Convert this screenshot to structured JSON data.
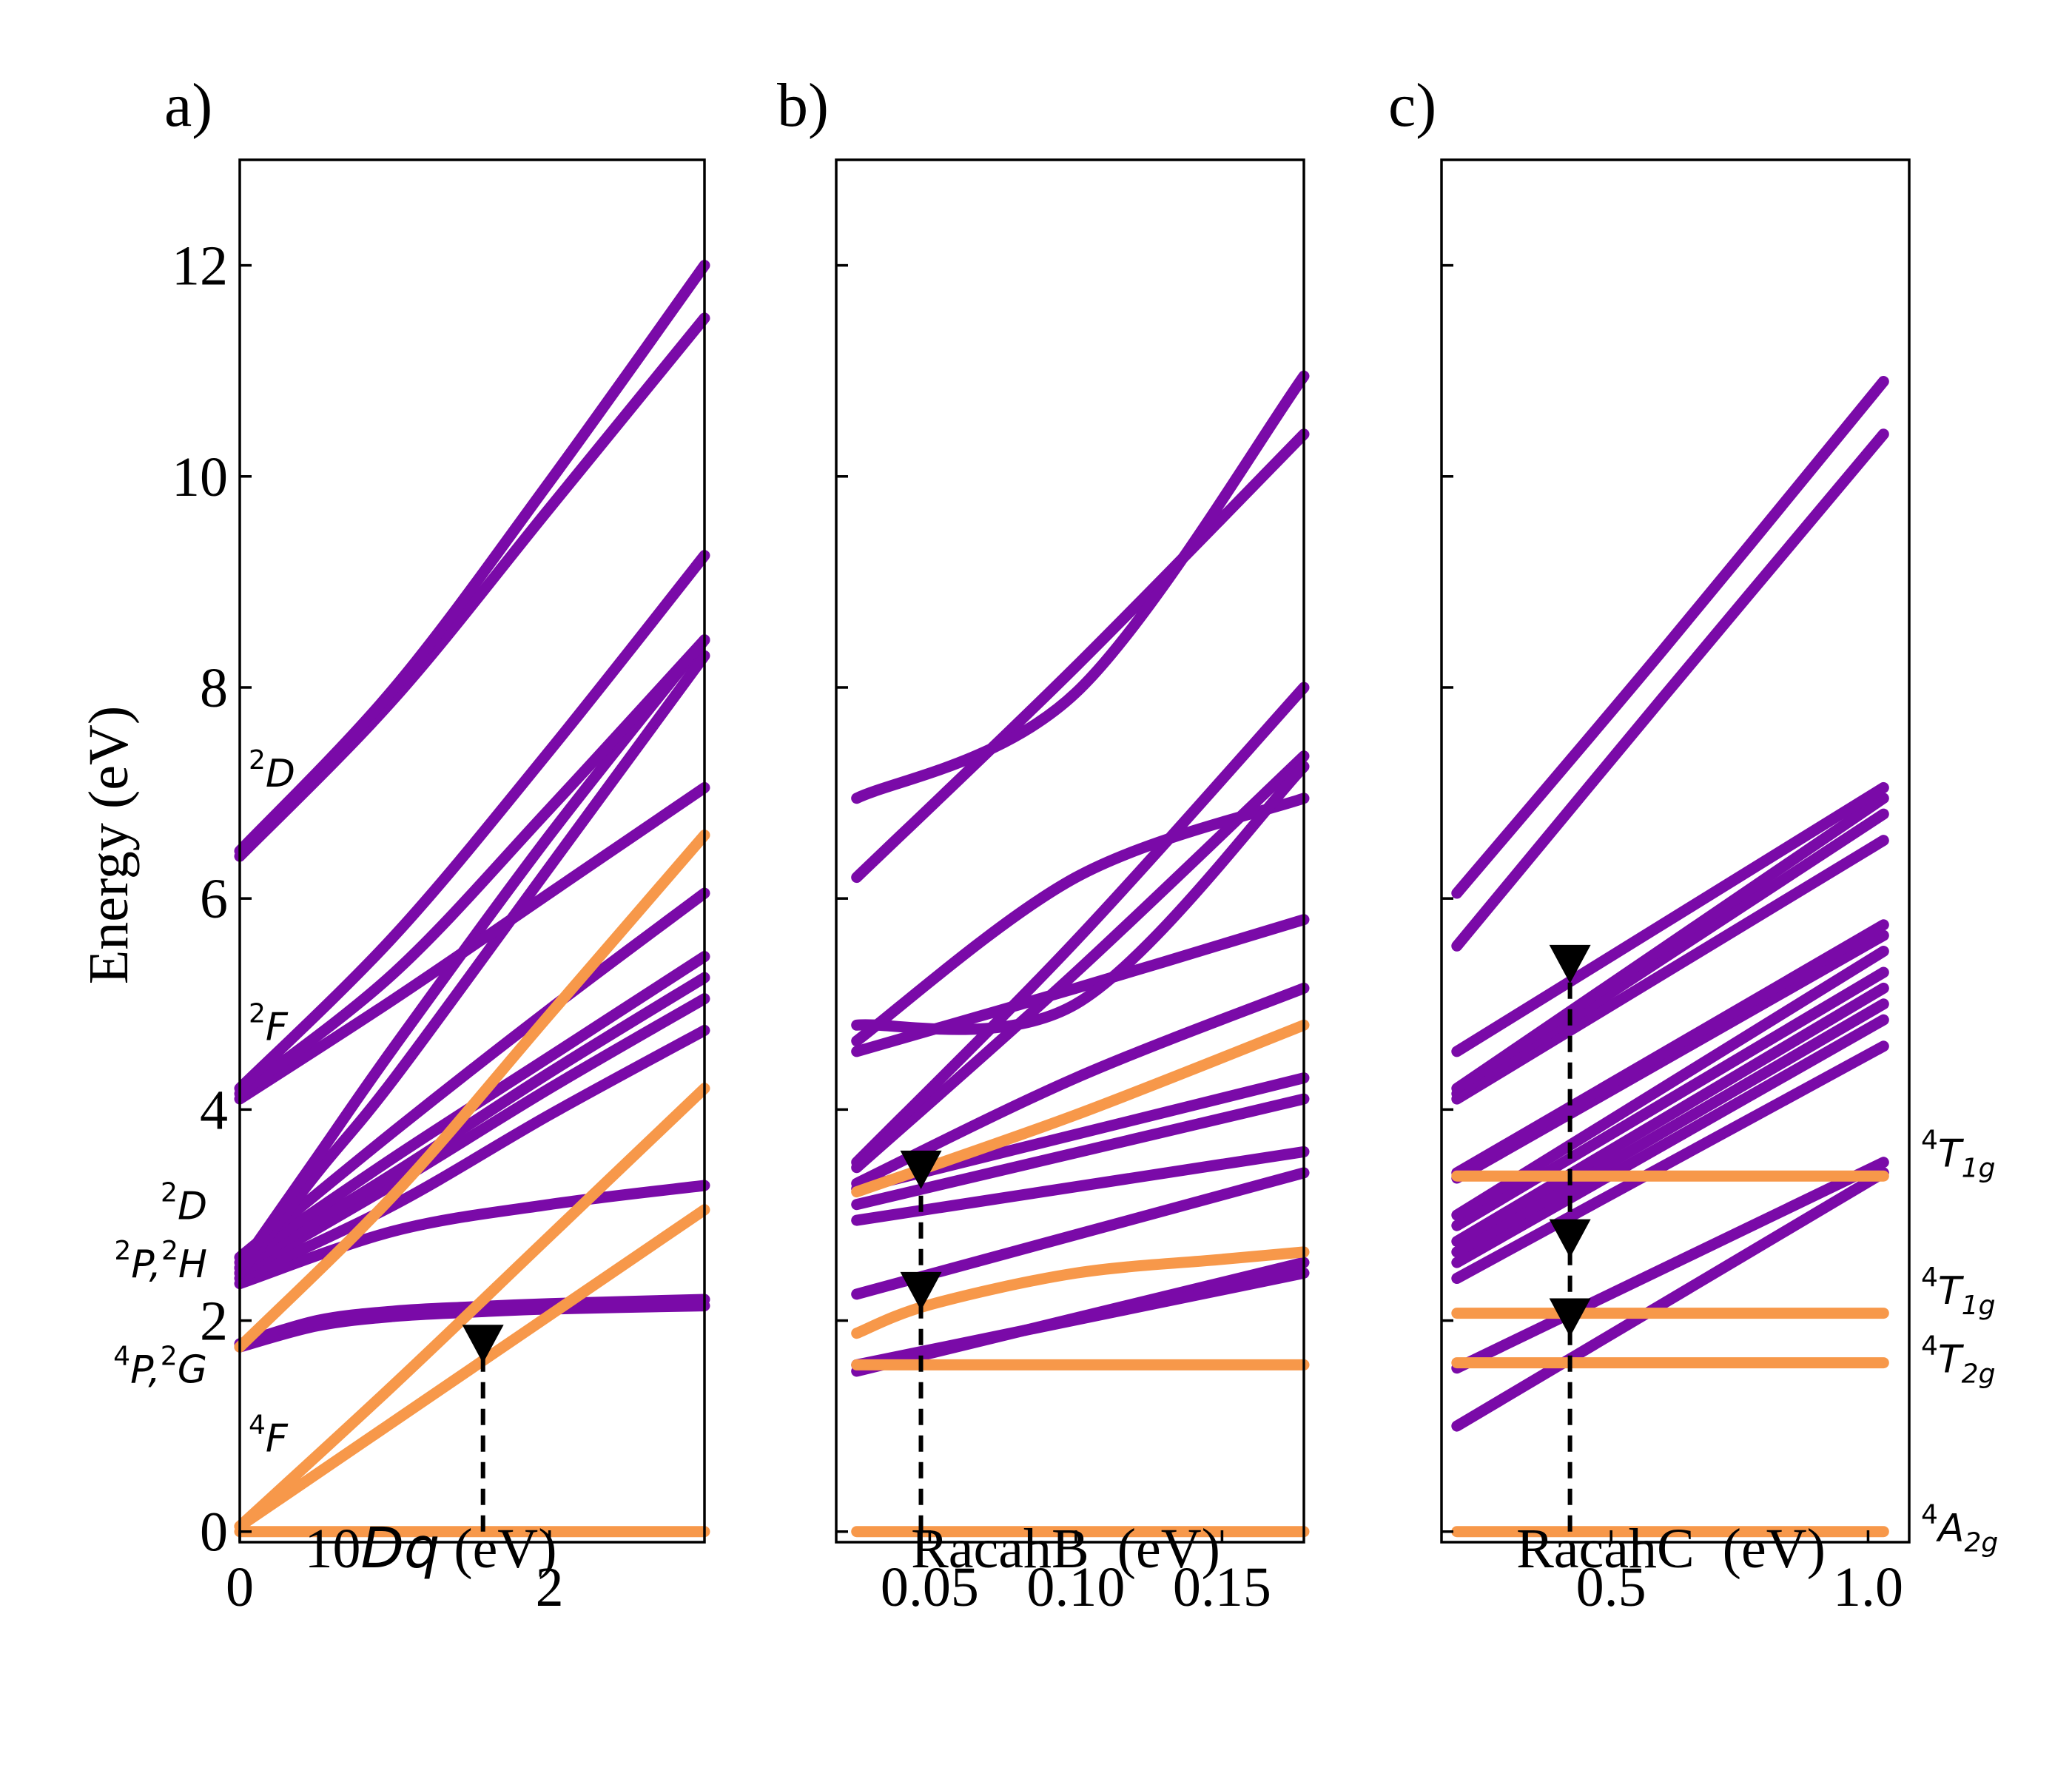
{
  "figure": {
    "ylabel": "Energy (eV)",
    "colors": {
      "quartet": "#F7984A",
      "doublet": "#7A0AA8",
      "marker": "#000000"
    }
  },
  "chart_data": [
    {
      "type": "line",
      "panel": "a)",
      "xlabel_prefix": "10",
      "xlabel_italic": "Dq",
      "xlabel_suffix": " (eV)",
      "xlim": [
        0,
        3
      ],
      "ylim": [
        -0.1,
        13
      ],
      "xticks": [
        0,
        2
      ],
      "xtick_labels": [
        "0",
        "2"
      ],
      "yticks": [
        0,
        2,
        4,
        6,
        8,
        10,
        12
      ],
      "ytick_labels": [
        "0",
        "2",
        "4",
        "6",
        "8",
        "10",
        "12"
      ],
      "left_labels": [
        {
          "sup": "2",
          "base": "D",
          "y": 7.2
        },
        {
          "sup": "2",
          "base": "F",
          "y": 4.8
        },
        {
          "sup": "2",
          "base": "D",
          "y": 3.1
        },
        {
          "sup": "2",
          "base": "P,",
          "sup2": "2",
          "base2": "H",
          "y": 2.55
        },
        {
          "sup": "4",
          "base": "P,",
          "sup2": "2",
          "base2": "G",
          "y": 1.55
        },
        {
          "sup": "4",
          "base": "F",
          "y": 0.9
        }
      ],
      "series": [
        {
          "name": "4A2g",
          "spin": "quartet",
          "x": [
            0,
            3
          ],
          "y": [
            0,
            0
          ]
        },
        {
          "name": "4T2g",
          "spin": "quartet",
          "x": [
            0,
            1.5,
            3
          ],
          "y": [
            0.05,
            1.55,
            3.05
          ]
        },
        {
          "name": "4T1g(F)",
          "spin": "quartet",
          "x": [
            0,
            1,
            2,
            3
          ],
          "y": [
            0.05,
            1.4,
            2.8,
            4.2
          ]
        },
        {
          "name": "4T1g(P)",
          "spin": "quartet",
          "x": [
            0,
            1,
            2,
            3
          ],
          "y": [
            1.75,
            3.2,
            4.9,
            6.6
          ]
        },
        {
          "name": "2E",
          "spin": "doublet",
          "x": [
            0,
            0.5,
            1,
            1.5,
            2,
            3
          ],
          "y": [
            1.75,
            1.95,
            2.04,
            2.08,
            2.11,
            2.14
          ]
        },
        {
          "name": "2T1",
          "spin": "doublet",
          "x": [
            0,
            0.5,
            1,
            1.5,
            2,
            3
          ],
          "y": [
            1.78,
            2.0,
            2.09,
            2.13,
            2.16,
            2.2
          ]
        },
        {
          "name": "d1",
          "spin": "doublet",
          "x": [
            0,
            1,
            2,
            3
          ],
          "y": [
            2.35,
            2.85,
            3.1,
            3.28
          ]
        },
        {
          "name": "d2",
          "spin": "doublet",
          "x": [
            0,
            1,
            2,
            3
          ],
          "y": [
            2.4,
            3.1,
            3.95,
            4.75
          ]
        },
        {
          "name": "d3",
          "spin": "doublet",
          "x": [
            0,
            1,
            2,
            3
          ],
          "y": [
            2.45,
            3.3,
            4.2,
            5.05
          ]
        },
        {
          "name": "d4",
          "spin": "doublet",
          "x": [
            0,
            1,
            2,
            3
          ],
          "y": [
            2.5,
            3.4,
            4.35,
            5.25
          ]
        },
        {
          "name": "d5",
          "spin": "doublet",
          "x": [
            0,
            1,
            2,
            3
          ],
          "y": [
            2.55,
            3.55,
            4.5,
            5.45
          ]
        },
        {
          "name": "d6",
          "spin": "doublet",
          "x": [
            0,
            1,
            2,
            3
          ],
          "y": [
            2.6,
            3.8,
            4.95,
            6.05
          ]
        },
        {
          "name": "d7",
          "spin": "doublet",
          "x": [
            0,
            0.5,
            1,
            2,
            3
          ],
          "y": [
            2.45,
            3.4,
            4.3,
            6.3,
            8.3
          ]
        },
        {
          "name": "d8",
          "spin": "doublet",
          "x": [
            0,
            0.5,
            1,
            2,
            3
          ],
          "y": [
            2.5,
            3.55,
            4.6,
            6.6,
            8.45
          ]
        },
        {
          "name": "d9",
          "spin": "doublet",
          "x": [
            0,
            1,
            2,
            3
          ],
          "y": [
            4.1,
            5.05,
            6.05,
            7.05
          ]
        },
        {
          "name": "d10",
          "spin": "doublet",
          "x": [
            0,
            1,
            2,
            3
          ],
          "y": [
            4.15,
            5.3,
            6.85,
            8.45
          ]
        },
        {
          "name": "d11",
          "spin": "doublet",
          "x": [
            0,
            1,
            2,
            3
          ],
          "y": [
            4.2,
            5.65,
            7.4,
            9.25
          ]
        },
        {
          "name": "d12",
          "spin": "doublet",
          "x": [
            0,
            1,
            2,
            3
          ],
          "y": [
            6.4,
            7.9,
            9.7,
            11.5
          ]
        },
        {
          "name": "d13",
          "spin": "doublet",
          "x": [
            0,
            1,
            2,
            3
          ],
          "y": [
            6.45,
            8.0,
            9.95,
            12.0
          ]
        },
        {
          "name": "transition",
          "spin": "marker",
          "x": [
            1.57,
            1.57
          ],
          "y": [
            0,
            1.75
          ]
        }
      ],
      "markers": [
        {
          "x": 1.57,
          "y": 1.75
        }
      ]
    },
    {
      "type": "line",
      "panel": "b)",
      "xlabel": "RacahB  (eV)",
      "xlim": [
        0.018,
        0.178
      ],
      "ylim": [
        -0.1,
        13
      ],
      "xticks": [
        0.05,
        0.1,
        0.15
      ],
      "xtick_labels": [
        "0.05",
        "0.10",
        "0.15"
      ],
      "yticks": [
        0,
        2,
        4,
        6,
        8,
        10,
        12
      ],
      "series": [
        {
          "name": "4A2g",
          "spin": "quartet",
          "x": [
            0.025,
            0.178
          ],
          "y": [
            0,
            0
          ]
        },
        {
          "name": "4T2g",
          "spin": "quartet",
          "x": [
            0.025,
            0.178
          ],
          "y": [
            1.58,
            1.58
          ]
        },
        {
          "name": "4T1g(F)",
          "spin": "quartet",
          "x": [
            0.025,
            0.05,
            0.1,
            0.15,
            0.178
          ],
          "y": [
            1.88,
            2.15,
            2.45,
            2.58,
            2.65
          ]
        },
        {
          "name": "4T1g(P)",
          "spin": "quartet",
          "x": [
            0.025,
            0.1,
            0.178
          ],
          "y": [
            3.22,
            3.95,
            4.8
          ]
        },
        {
          "name": "b1",
          "spin": "doublet",
          "x": [
            0.025,
            0.178
          ],
          "y": [
            1.52,
            2.55
          ]
        },
        {
          "name": "b2",
          "spin": "doublet",
          "x": [
            0.025,
            0.178
          ],
          "y": [
            1.58,
            2.45
          ]
        },
        {
          "name": "b3",
          "spin": "doublet",
          "x": [
            0.025,
            0.178
          ],
          "y": [
            2.25,
            3.4
          ]
        },
        {
          "name": "b4",
          "spin": "doublet",
          "x": [
            0.025,
            0.178
          ],
          "y": [
            2.95,
            3.6
          ]
        },
        {
          "name": "b5",
          "spin": "doublet",
          "x": [
            0.025,
            0.178
          ],
          "y": [
            3.1,
            4.1
          ]
        },
        {
          "name": "b6",
          "spin": "doublet",
          "x": [
            0.025,
            0.178
          ],
          "y": [
            3.25,
            4.3
          ]
        },
        {
          "name": "b7",
          "spin": "doublet",
          "x": [
            0.025,
            0.1,
            0.178
          ],
          "y": [
            3.3,
            4.3,
            5.15
          ]
        },
        {
          "name": "b8",
          "spin": "doublet",
          "x": [
            0.025,
            0.1,
            0.178
          ],
          "y": [
            3.45,
            5.3,
            7.35
          ]
        },
        {
          "name": "b9",
          "spin": "doublet",
          "x": [
            0.025,
            0.1,
            0.178
          ],
          "y": [
            3.5,
            5.6,
            8.0
          ]
        },
        {
          "name": "b10",
          "spin": "doublet",
          "x": [
            0.025,
            0.1,
            0.178
          ],
          "y": [
            4.55,
            5.15,
            5.8
          ]
        },
        {
          "name": "b11",
          "spin": "doublet",
          "x": [
            0.025,
            0.1,
            0.178
          ],
          "y": [
            4.65,
            6.2,
            6.95
          ]
        },
        {
          "name": "b12",
          "spin": "doublet",
          "x": [
            0.025,
            0.1,
            0.178
          ],
          "y": [
            4.8,
            5.0,
            7.25
          ]
        },
        {
          "name": "b13",
          "spin": "doublet",
          "x": [
            0.025,
            0.1,
            0.178
          ],
          "y": [
            6.2,
            8.2,
            10.4
          ]
        },
        {
          "name": "b14",
          "spin": "doublet",
          "x": [
            0.025,
            0.1,
            0.178
          ],
          "y": [
            6.95,
            7.95,
            10.95
          ]
        },
        {
          "name": "transition",
          "spin": "marker",
          "x": [
            0.047,
            0.047
          ],
          "y": [
            0,
            3.4
          ]
        }
      ],
      "markers": [
        {
          "x": 0.047,
          "y": 3.4
        },
        {
          "x": 0.047,
          "y": 2.25
        }
      ]
    },
    {
      "type": "line",
      "panel": "c)",
      "xlabel": "RacahC  (eV)",
      "xlim": [
        0.17,
        1.08
      ],
      "ylim": [
        -0.1,
        13
      ],
      "xticks": [
        0.5,
        1.0
      ],
      "xtick_labels": [
        "0.5",
        "1.0"
      ],
      "yticks": [
        0,
        2,
        4,
        6,
        8,
        10,
        12
      ],
      "right_labels": [
        {
          "sup": "4",
          "base": "T",
          "sub": "1g",
          "y": 3.6
        },
        {
          "sup": "4",
          "base": "T",
          "sub": "1g",
          "y": 2.3
        },
        {
          "sup": "4",
          "base": "T",
          "sub": "2g",
          "y": 1.65
        },
        {
          "sup": "4",
          "base": "A",
          "sub": "2g",
          "y": 0.05
        }
      ],
      "series": [
        {
          "name": "4A2g",
          "spin": "quartet",
          "x": [
            0.2,
            1.03
          ],
          "y": [
            0,
            0
          ]
        },
        {
          "name": "4T2g",
          "spin": "quartet",
          "x": [
            0.2,
            1.03
          ],
          "y": [
            1.6,
            1.6
          ]
        },
        {
          "name": "4T1g(F)",
          "spin": "quartet",
          "x": [
            0.2,
            1.03
          ],
          "y": [
            2.07,
            2.07
          ]
        },
        {
          "name": "4T1g(P)",
          "spin": "quartet",
          "x": [
            0.2,
            1.03
          ],
          "y": [
            3.37,
            3.37
          ]
        },
        {
          "name": "c1",
          "spin": "doublet",
          "x": [
            0.2,
            1.03
          ],
          "y": [
            1.0,
            3.4
          ]
        },
        {
          "name": "c2",
          "spin": "doublet",
          "x": [
            0.2,
            1.03
          ],
          "y": [
            1.55,
            3.5
          ]
        },
        {
          "name": "c3",
          "spin": "doublet",
          "x": [
            0.2,
            1.03
          ],
          "y": [
            2.4,
            4.6
          ]
        },
        {
          "name": "c4",
          "spin": "doublet",
          "x": [
            0.2,
            1.03
          ],
          "y": [
            2.55,
            4.85
          ]
        },
        {
          "name": "c5",
          "spin": "doublet",
          "x": [
            0.2,
            1.03
          ],
          "y": [
            2.65,
            5.0
          ]
        },
        {
          "name": "c6",
          "spin": "doublet",
          "x": [
            0.2,
            1.03
          ],
          "y": [
            2.75,
            5.15
          ]
        },
        {
          "name": "c7",
          "spin": "doublet",
          "x": [
            0.2,
            1.03
          ],
          "y": [
            2.9,
            5.3
          ]
        },
        {
          "name": "c8",
          "spin": "doublet",
          "x": [
            0.2,
            1.03
          ],
          "y": [
            3.0,
            5.5
          ]
        },
        {
          "name": "c9",
          "spin": "doublet",
          "x": [
            0.2,
            1.03
          ],
          "y": [
            3.35,
            5.65
          ]
        },
        {
          "name": "c10",
          "spin": "doublet",
          "x": [
            0.2,
            1.03
          ],
          "y": [
            3.4,
            5.75
          ]
        },
        {
          "name": "c11",
          "spin": "doublet",
          "x": [
            0.2,
            1.03
          ],
          "y": [
            4.1,
            6.55
          ]
        },
        {
          "name": "c12",
          "spin": "doublet",
          "x": [
            0.2,
            1.03
          ],
          "y": [
            4.15,
            6.8
          ]
        },
        {
          "name": "c13",
          "spin": "doublet",
          "x": [
            0.2,
            1.03
          ],
          "y": [
            4.2,
            6.95
          ]
        },
        {
          "name": "c14",
          "spin": "doublet",
          "x": [
            0.2,
            1.03
          ],
          "y": [
            4.55,
            7.05
          ]
        },
        {
          "name": "c15",
          "spin": "doublet",
          "x": [
            0.2,
            0.6,
            1.03
          ],
          "y": [
            5.55,
            7.9,
            10.4
          ]
        },
        {
          "name": "c16",
          "spin": "doublet",
          "x": [
            0.2,
            0.6,
            1.03
          ],
          "y": [
            6.05,
            8.35,
            10.9
          ]
        },
        {
          "name": "transition",
          "spin": "marker",
          "x": [
            0.42,
            0.42
          ],
          "y": [
            0,
            5.35
          ]
        }
      ],
      "markers": [
        {
          "x": 0.42,
          "y": 5.35
        },
        {
          "x": 0.42,
          "y": 2.75
        },
        {
          "x": 0.42,
          "y": 2.0
        }
      ]
    }
  ]
}
